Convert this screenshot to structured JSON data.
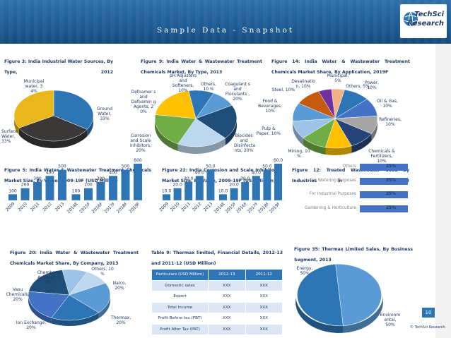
{
  "header": {
    "title": "Sample Data - Snapshot",
    "logo_line1": "TechSci",
    "logo_line2": "Research"
  },
  "fig3": {
    "title": "Figure 3: India Industrial Water Sources, By Type, 2012",
    "labels": [
      "Municipal water, 3 4%",
      "Ground Water, 33%",
      "Surface Water, 33%"
    ],
    "chart_data": {
      "type": "pie",
      "categories": [
        "Municipal water",
        "Ground Water",
        "Surface Water"
      ],
      "values": [
        34,
        33,
        33
      ]
    }
  },
  "fig9": {
    "title": "Figure 9: India Water & Wastewater Treatment Chemicals Market, By Type, 2013",
    "labels": [
      "pH Adjusters and Softeners, 10%",
      "Others, 10 %",
      "Coagulant s and Floculants , 20%",
      "Defoamer s and Defoamin g Agents, 2 0%",
      "Corrosion and Scale Inhibitors, 20%",
      "Biocides and Disinfecta nts, 20%"
    ],
    "chart_data": {
      "type": "pie",
      "categories": [
        "pH Adjusters and Softeners",
        "Others",
        "Coagulants and Floculants",
        "Biocides and Disinfectants",
        "Corrosion and Scale Inhibitors",
        "Defoamers and Defoaming Agents"
      ],
      "values": [
        10,
        10,
        20,
        20,
        20,
        20
      ]
    }
  },
  "fig14": {
    "title": "Figure 14: India Water & Wastewater Treatment Chemicals Market Share, By Application, 2019F",
    "labels": [
      "Municipal, 5%",
      "Power, 10%",
      "Others, 5%",
      "Desalinatio n, 10%",
      "Steel, 10%",
      "Food & Beverages, 10%",
      "Oil & Gas, 10%",
      "Refineries, 10%",
      "Pulp & Paper, 10%",
      "Mining, 10 %",
      "Chemicals & Fertilizers, 10%"
    ],
    "chart_data": {
      "type": "pie",
      "categories": [
        "Municipal",
        "Power",
        "Oil & Gas",
        "Refineries",
        "Chemicals & Fertilizers",
        "Mining",
        "Pulp & Paper",
        "Food & Beverages",
        "Steel",
        "Desalination",
        "Others"
      ],
      "values": [
        5,
        10,
        10,
        10,
        10,
        10,
        10,
        10,
        10,
        10,
        5
      ]
    }
  },
  "fig5": {
    "title": "Figure 5: India Water & Wastewater Treatment Chemicals Market Size, By Value, 2009-19F (USD Million)",
    "chart_data": {
      "type": "bar",
      "categories": [
        "2009",
        "2010",
        "2011",
        "2012",
        "2013",
        "2014E",
        "2015F",
        "2016F",
        "2017F",
        "2018F",
        "2019F"
      ],
      "values": [
        100,
        200,
        300,
        400,
        500,
        100,
        200,
        300,
        400,
        500,
        600
      ]
    }
  },
  "fig22": {
    "title": "Figure 22: India Corrosion and Scale Inhibitors Market Size, By Value, 2009-19F (USD Million)",
    "chart_data": {
      "type": "bar",
      "categories": [
        "2009",
        "2010",
        "2011",
        "2012",
        "2013",
        "2014E",
        "2015F",
        "2016F",
        "2017F",
        "2018F",
        "2019F"
      ],
      "values": [
        10.0,
        20.0,
        30.0,
        40.0,
        50.0,
        10.0,
        20.0,
        30.0,
        40.0,
        50.0,
        60.0
      ],
      "value_labels": [
        "10.0",
        "20.0",
        "30.0",
        "40.0",
        "50.0",
        "10.0",
        "20.0",
        "30.0",
        "40.0",
        "50.0",
        "60.0"
      ]
    }
  },
  "fig12": {
    "title": "Figure 12: Treated Wastewater Used By Industries in India, 2013",
    "chart_data": {
      "type": "bar",
      "categories": [
        "Others",
        "For Watering Purposes",
        "For Industrial Purposes",
        "Gardening & Horticulture"
      ],
      "values": [
        25,
        25,
        25,
        25
      ],
      "value_labels": [
        "25%",
        "25%",
        "25%",
        "25%"
      ]
    }
  },
  "fig20": {
    "title": "Figure 20: India Water & Wastewater Treatment Chemicals Market Share, By Company, 2013",
    "labels": [
      "Chembond Ashland, 1 0%",
      "Others, 10 %",
      "Vasu Chemicals, 20%",
      "Nalco, 20%",
      "Ion Exchange, 20%",
      "Thermax, 20%"
    ],
    "chart_data": {
      "type": "pie",
      "categories": [
        "Chembond Ashland",
        "Others",
        "Nalco",
        "Thermax",
        "Ion Exchange",
        "Vasu Chemicals"
      ],
      "values": [
        10,
        10,
        20,
        20,
        20,
        20
      ]
    }
  },
  "table9": {
    "title": "Table 9: Thermax limited, Financial Details, 2012-13 and 2011-12 (USD Million)",
    "headers": [
      "Particulars (USD Million)",
      "2012-13",
      "2011-12"
    ],
    "rows": [
      [
        "Domestic sales",
        "XXX",
        "XXX"
      ],
      [
        "Export",
        "XXX",
        "XXX"
      ],
      [
        "Total Income",
        "XXX",
        "XXX"
      ],
      [
        "Profit Before tax (PBT)",
        "XXX",
        "XXX"
      ],
      [
        "Profit After Tax (PAT)",
        "XXX",
        "XXX"
      ]
    ]
  },
  "fig35": {
    "title": "Figure 35: Thermax Limited Sales, By Business Segment, 2013",
    "labels": [
      "Energy, 50%",
      "Environm ental, 50%"
    ],
    "chart_data": {
      "type": "pie",
      "categories": [
        "Energy",
        "Environmental"
      ],
      "values": [
        50,
        50
      ]
    }
  },
  "footer": {
    "page_number": "10",
    "copyright": "© TechSci Research"
  }
}
